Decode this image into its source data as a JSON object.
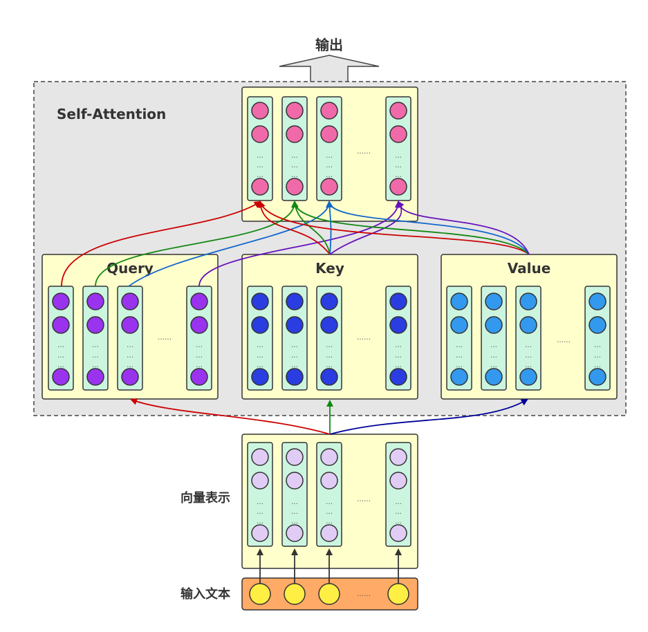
{
  "output_label": "输出",
  "self_attention_label": "Self-Attention",
  "query_label": "Query",
  "key_label": "Key",
  "value_label": "Value",
  "vector_label": "向量表示",
  "input_label": "输入文本",
  "ellipsis_horizontal": "……",
  "ellipsis_vertical": "…",
  "colors": {
    "output_circle": "#f06aa9",
    "query_circle": "#9933ee",
    "key_circle": "#2a3de0",
    "value_circle": "#3399ee",
    "vector_circle": "#e0ccf5",
    "input_circle": "#ffee44",
    "column_fill": "#ccf5e0",
    "panel_fill": "#ffffcc",
    "self_attention_bg": "#e6e6e6",
    "input_bar": "#ffaa66",
    "arrow_red": "#cc0000",
    "arrow_green": "#118811",
    "arrow_blue": "#1166cc",
    "arrow_purple": "#6611bb",
    "arrow_navy": "#000099"
  }
}
